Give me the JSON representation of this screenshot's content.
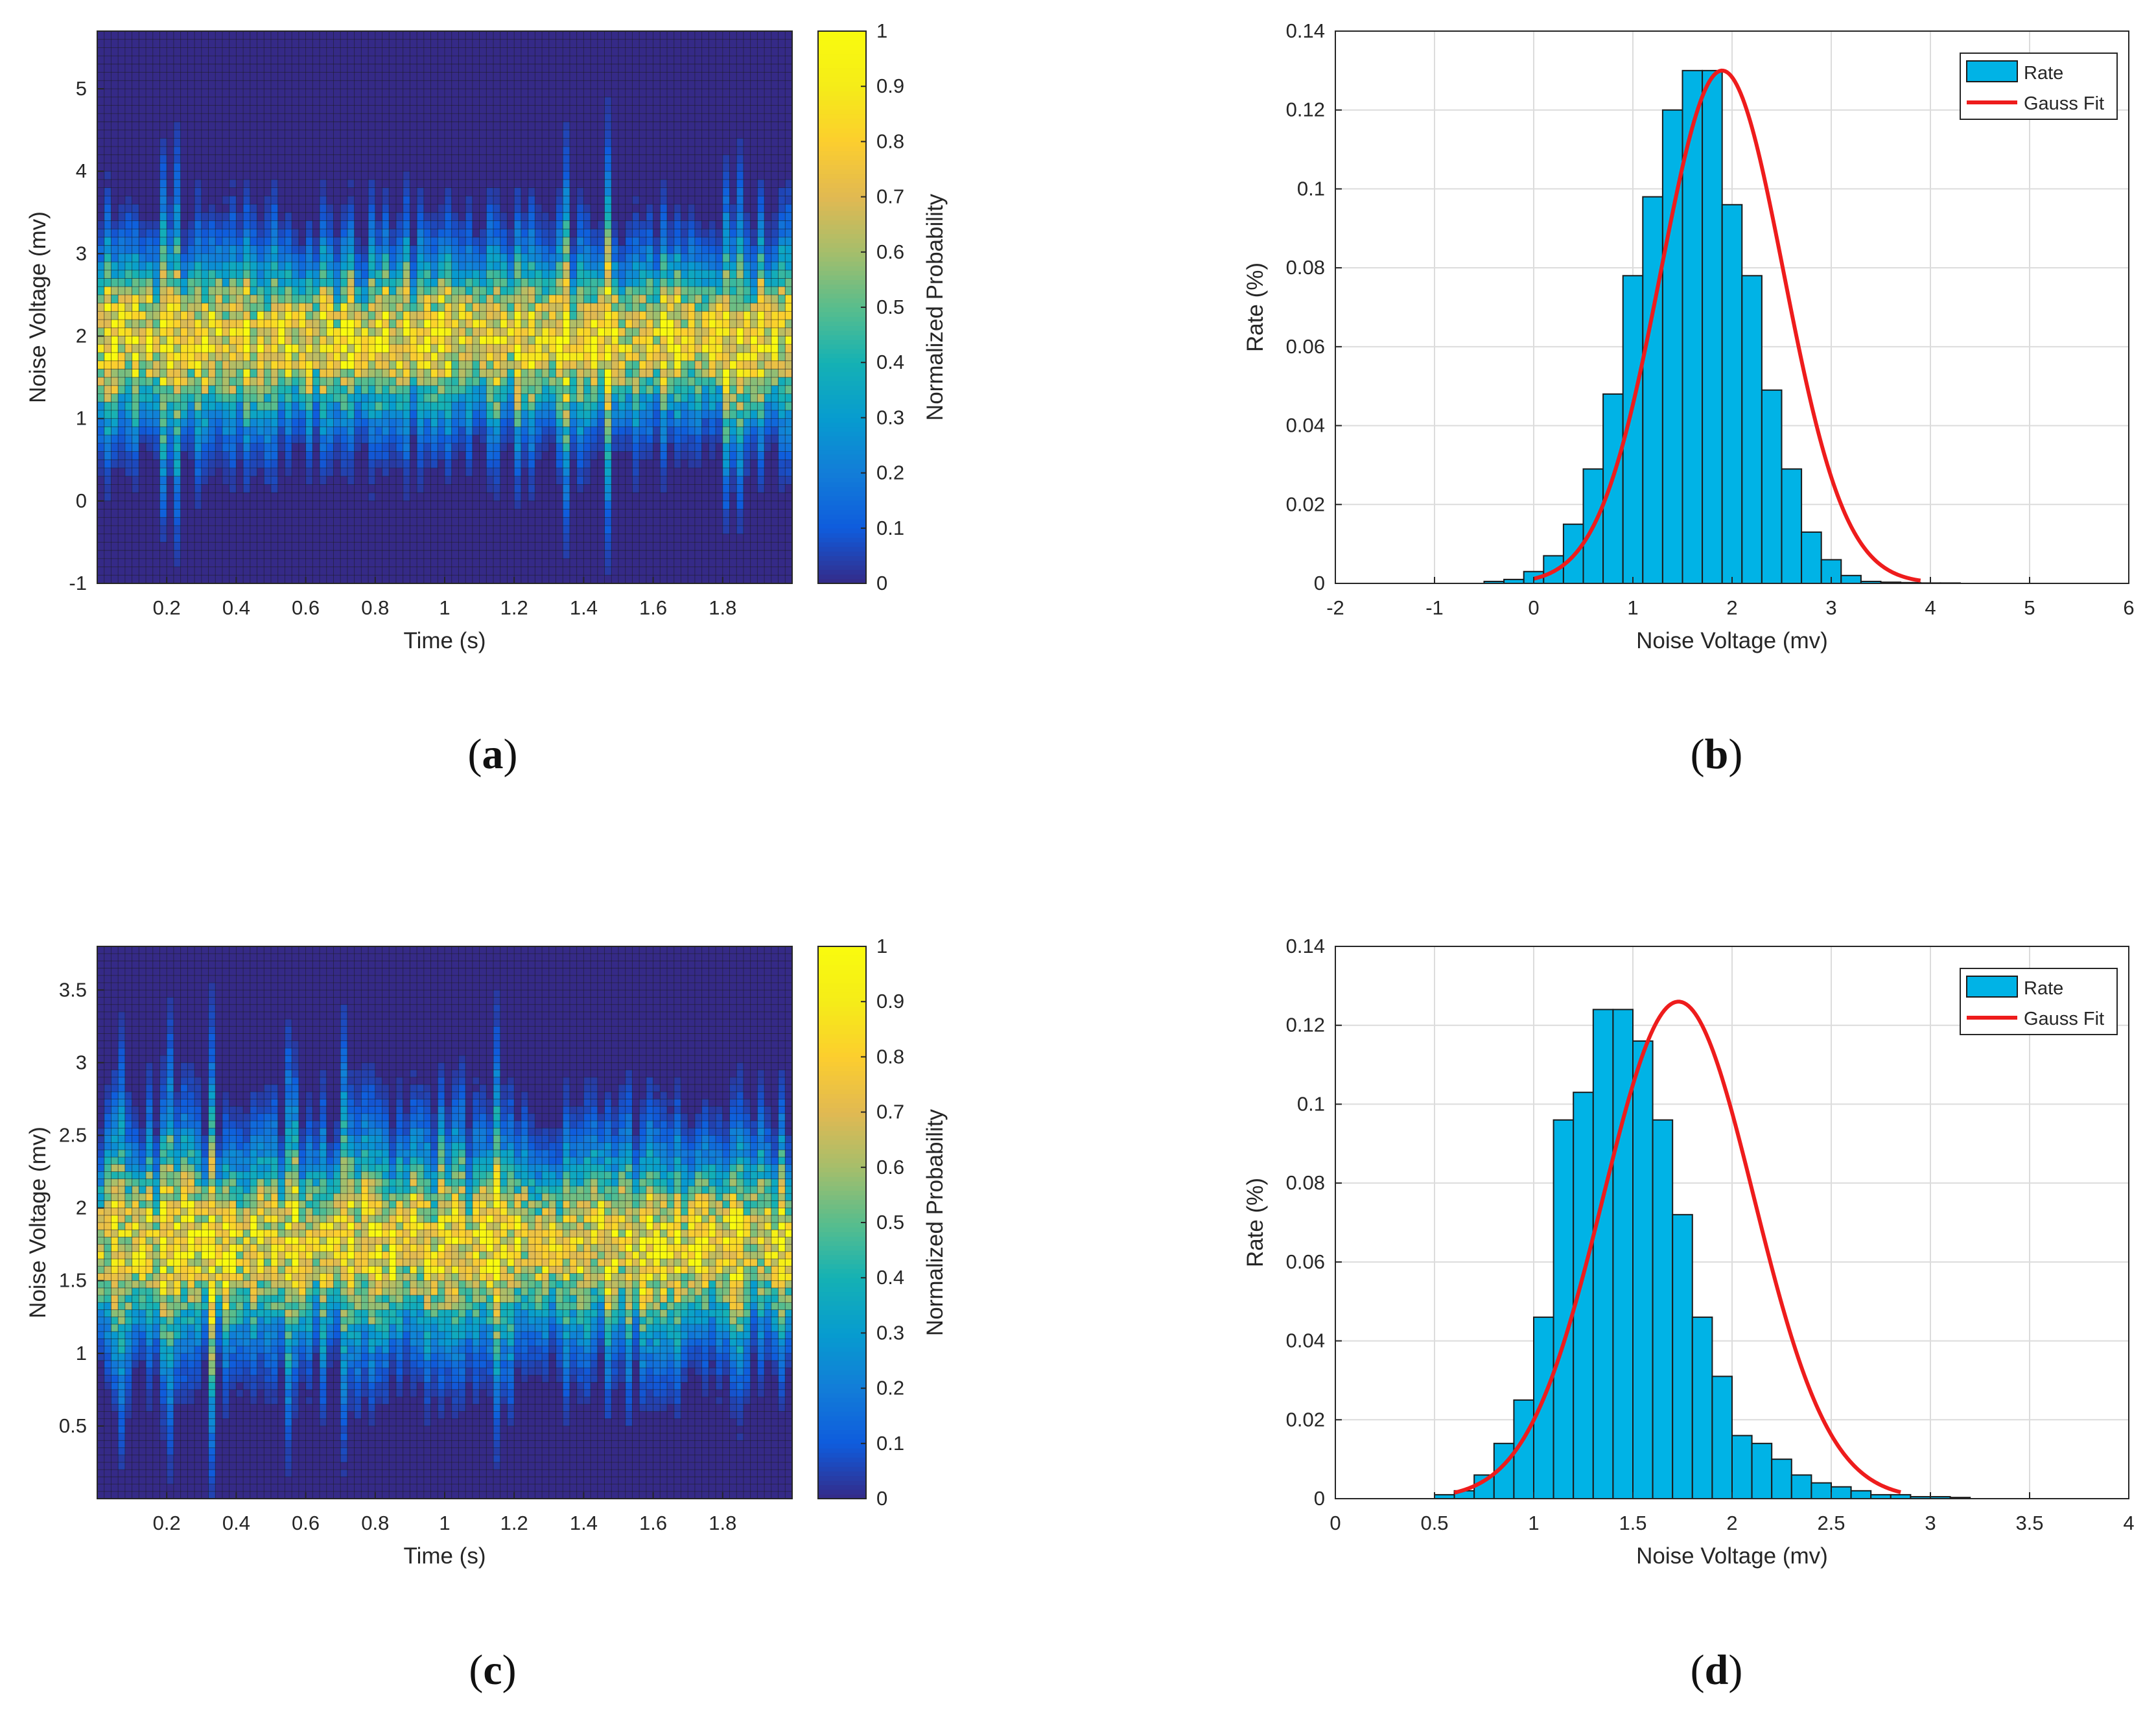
{
  "chart_data": [
    {
      "type": "heatmap",
      "panel_label": "(a)",
      "panel_letter": "a",
      "xlabel": "Time (s)",
      "ylabel": "Noise Voltage (mv)",
      "xlim": [
        0,
        2
      ],
      "ylim": [
        -1,
        5.7
      ],
      "xticks": [
        0.2,
        0.4,
        0.6,
        0.8,
        1,
        1.2,
        1.4,
        1.6,
        1.8
      ],
      "xticklabels": [
        "0.2",
        "0.4",
        "0.6",
        "0.8",
        "1",
        "1.2",
        "1.4",
        "1.6",
        "1.8"
      ],
      "yticks": [
        -1,
        0,
        1,
        2,
        3,
        4,
        5
      ],
      "yticklabels": [
        "-1",
        "0",
        "1",
        "2",
        "3",
        "4",
        "5"
      ],
      "colorbar": {
        "label": "Normalized Probability",
        "range": [
          0,
          1
        ],
        "ticks": [
          0,
          0.1,
          0.2,
          0.3,
          0.4,
          0.5,
          0.6,
          0.7,
          0.8,
          0.9,
          1
        ],
        "ticklabels": [
          "0",
          "0.1",
          "0.2",
          "0.3",
          "0.4",
          "0.5",
          "0.6",
          "0.7",
          "0.8",
          "0.9",
          "1"
        ]
      },
      "time_bins": 100,
      "voltage_bins": 67,
      "distribution": {
        "center_mv": 1.95,
        "sigma_mv": 0.6,
        "peak_probability": 0.8
      }
    },
    {
      "type": "bar",
      "panel_label": "(b)",
      "panel_letter": "b",
      "xlabel": "Noise Voltage (mv)",
      "ylabel": "Rate (%)",
      "xlim": [
        -2,
        6
      ],
      "ylim": [
        0,
        0.14
      ],
      "xticks": [
        -2,
        -1,
        0,
        1,
        2,
        3,
        4,
        5,
        6
      ],
      "xticklabels": [
        "-2",
        "-1",
        "0",
        "1",
        "2",
        "3",
        "4",
        "5",
        "6"
      ],
      "yticks": [
        0,
        0.02,
        0.04,
        0.06,
        0.08,
        0.1,
        0.12,
        0.14
      ],
      "yticklabels": [
        "0",
        "0.02",
        "0.04",
        "0.06",
        "0.08",
        "0.1",
        "0.12",
        "0.14"
      ],
      "grid": true,
      "legend": {
        "position": "top-right",
        "entries": [
          "Rate",
          "Gauss Fit"
        ]
      },
      "bin_edges": [
        -0.5,
        -0.3,
        -0.1,
        0.1,
        0.3,
        0.5,
        0.7,
        0.9,
        1.1,
        1.3,
        1.5,
        1.7,
        1.9,
        2.1,
        2.3,
        2.5,
        2.7,
        2.9,
        3.1,
        3.3,
        3.5,
        3.7,
        3.9,
        4.1,
        4.3
      ],
      "values": [
        0.0005,
        0.001,
        0.003,
        0.007,
        0.015,
        0.029,
        0.048,
        0.078,
        0.098,
        0.12,
        0.13,
        0.13,
        0.096,
        0.078,
        0.049,
        0.029,
        0.013,
        0.006,
        0.002,
        0.0005,
        0.0003,
        0.0002,
        0.0001,
        0.0001
      ],
      "fit": {
        "name": "Gauss Fit",
        "amplitude": 0.13,
        "mean": 1.9,
        "sigma": 0.62,
        "x_range": [
          0,
          3.9
        ]
      }
    },
    {
      "type": "heatmap",
      "panel_label": "(c)",
      "panel_letter": "c",
      "xlabel": "Time (s)",
      "ylabel": "Noise Voltage (mv)",
      "xlim": [
        0,
        2
      ],
      "ylim": [
        0,
        3.8
      ],
      "xticks": [
        0.2,
        0.4,
        0.6,
        0.8,
        1,
        1.2,
        1.4,
        1.6,
        1.8
      ],
      "xticklabels": [
        "0.2",
        "0.4",
        "0.6",
        "0.8",
        "1",
        "1.2",
        "1.4",
        "1.6",
        "1.8"
      ],
      "yticks": [
        0.5,
        1,
        1.5,
        2,
        2.5,
        3,
        3.5
      ],
      "yticklabels": [
        "0.5",
        "1",
        "1.5",
        "2",
        "2.5",
        "3",
        "3.5"
      ],
      "colorbar": {
        "label": "Normalized Probability",
        "range": [
          0,
          1
        ],
        "ticks": [
          0,
          0.1,
          0.2,
          0.3,
          0.4,
          0.5,
          0.6,
          0.7,
          0.8,
          0.9,
          1
        ],
        "ticklabels": [
          "0",
          "0.1",
          "0.2",
          "0.3",
          "0.4",
          "0.5",
          "0.6",
          "0.7",
          "0.8",
          "0.9",
          "1"
        ]
      },
      "time_bins": 100,
      "voltage_bins": 76,
      "distribution": {
        "center_mv": 1.75,
        "sigma_mv": 0.38,
        "peak_probability": 0.8
      }
    },
    {
      "type": "bar",
      "panel_label": "(d)",
      "panel_letter": "d",
      "xlabel": "Noise Voltage (mv)",
      "ylabel": "Rate (%)",
      "xlim": [
        0,
        4
      ],
      "ylim": [
        0,
        0.14
      ],
      "xticks": [
        0,
        0.5,
        1,
        1.5,
        2,
        2.5,
        3,
        3.5,
        4
      ],
      "xticklabels": [
        "0",
        "0.5",
        "1",
        "1.5",
        "2",
        "2.5",
        "3",
        "3.5",
        "4"
      ],
      "yticks": [
        0,
        0.02,
        0.04,
        0.06,
        0.08,
        0.1,
        0.12,
        0.14
      ],
      "yticklabels": [
        "0",
        "0.02",
        "0.04",
        "0.06",
        "0.08",
        "0.1",
        "0.12",
        "0.14"
      ],
      "grid": true,
      "legend": {
        "position": "top-right",
        "entries": [
          "Rate",
          "Gauss Fit"
        ]
      },
      "bin_edges": [
        0.5,
        0.6,
        0.7,
        0.8,
        0.9,
        1.0,
        1.1,
        1.2,
        1.3,
        1.4,
        1.5,
        1.6,
        1.7,
        1.8,
        1.9,
        2.0,
        2.1,
        2.2,
        2.3,
        2.4,
        2.5,
        2.6,
        2.7,
        2.8,
        2.9,
        3.0,
        3.1,
        3.2
      ],
      "values": [
        0.001,
        0.002,
        0.006,
        0.014,
        0.025,
        0.046,
        0.096,
        0.103,
        0.124,
        0.124,
        0.116,
        0.096,
        0.072,
        0.046,
        0.031,
        0.016,
        0.014,
        0.01,
        0.006,
        0.004,
        0.003,
        0.002,
        0.001,
        0.001,
        0.0005,
        0.0005,
        0.0003
      ],
      "fit": {
        "name": "Gauss Fit",
        "amplitude": 0.126,
        "mean": 1.73,
        "sigma": 0.38,
        "x_range": [
          0.6,
          2.85
        ]
      }
    }
  ]
}
